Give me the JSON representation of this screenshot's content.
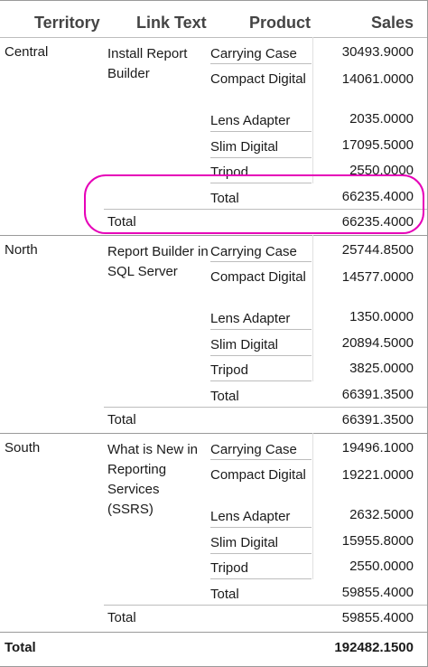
{
  "headers": {
    "territory": "Territory",
    "link_text": "Link Text",
    "product": "Product",
    "sales": "Sales"
  },
  "groups": [
    {
      "territory": "Central",
      "link_text": "Install Report Builder",
      "products": [
        {
          "name": "Carrying Case",
          "sales": "30493.9000"
        },
        {
          "name": "Compact Digital",
          "sales": "14061.0000"
        },
        {
          "name": "Lens Adapter",
          "sales": "2035.0000"
        },
        {
          "name": "Slim Digital",
          "sales": "17095.5000"
        },
        {
          "name": "Tripod",
          "sales": "2550.0000"
        }
      ],
      "subtotal": {
        "label": "Total",
        "sales": "66235.4000"
      },
      "total": {
        "label": "Total",
        "sales": "66235.4000"
      }
    },
    {
      "territory": "North",
      "link_text": "Report Builder in SQL Server",
      "products": [
        {
          "name": "Carrying Case",
          "sales": "25744.8500"
        },
        {
          "name": "Compact Digital",
          "sales": "14577.0000"
        },
        {
          "name": "Lens Adapter",
          "sales": "1350.0000"
        },
        {
          "name": "Slim Digital",
          "sales": "20894.5000"
        },
        {
          "name": "Tripod",
          "sales": "3825.0000"
        }
      ],
      "subtotal": {
        "label": "Total",
        "sales": "66391.3500"
      },
      "total": {
        "label": "Total",
        "sales": "66391.3500"
      }
    },
    {
      "territory": "South",
      "link_text": "What is New in Reporting Services (SSRS)",
      "products": [
        {
          "name": "Carrying Case",
          "sales": "19496.1000"
        },
        {
          "name": "Compact Digital",
          "sales": "19221.0000"
        },
        {
          "name": "Lens Adapter",
          "sales": "2632.5000"
        },
        {
          "name": "Slim Digital",
          "sales": "15955.8000"
        },
        {
          "name": "Tripod",
          "sales": "2550.0000"
        }
      ],
      "subtotal": {
        "label": "Total",
        "sales": "59855.4000"
      },
      "total": {
        "label": "Total",
        "sales": "59855.4000"
      }
    }
  ],
  "grand_total": {
    "label": "Total",
    "sales": "192482.1500"
  },
  "highlight_color": "#e600b8"
}
